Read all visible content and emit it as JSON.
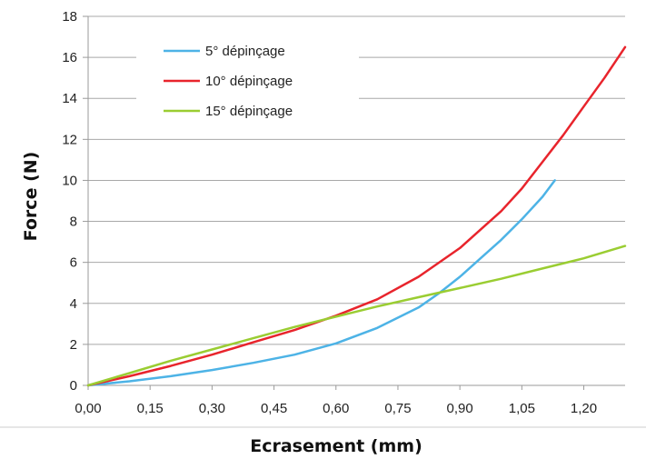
{
  "chart_data": {
    "type": "line",
    "title": "",
    "xlabel": "Ecrasement (mm)",
    "ylabel": "Force (N)",
    "xlim": [
      0,
      1.3
    ],
    "ylim": [
      0,
      18
    ],
    "x_ticks": [
      0,
      0.15,
      0.3,
      0.45,
      0.6,
      0.75,
      0.9,
      1.05,
      1.2
    ],
    "x_tick_labels": [
      "0,00",
      "0,15",
      "0,30",
      "0,45",
      "0,60",
      "0,75",
      "0,90",
      "1,05",
      "1,20"
    ],
    "y_ticks": [
      0,
      2,
      4,
      6,
      8,
      10,
      12,
      14,
      16,
      18
    ],
    "y_tick_labels": [
      "0",
      "2",
      "4",
      "6",
      "8",
      "10",
      "12",
      "14",
      "16",
      "18"
    ],
    "grid": "horizontal",
    "legend_position": "top-left",
    "series": [
      {
        "name": "5° dépinçage",
        "color": "#4db3e6",
        "x": [
          0,
          0.1,
          0.2,
          0.3,
          0.4,
          0.5,
          0.6,
          0.7,
          0.8,
          0.85,
          0.9,
          0.95,
          1.0,
          1.05,
          1.1,
          1.13
        ],
        "y": [
          0,
          0.2,
          0.45,
          0.75,
          1.1,
          1.5,
          2.05,
          2.8,
          3.8,
          4.5,
          5.3,
          6.2,
          7.1,
          8.1,
          9.2,
          10.0
        ]
      },
      {
        "name": "10° dépinçage",
        "color": "#e8242c",
        "x": [
          0,
          0.1,
          0.2,
          0.3,
          0.4,
          0.5,
          0.6,
          0.7,
          0.8,
          0.9,
          1.0,
          1.05,
          1.1,
          1.15,
          1.2,
          1.25,
          1.3
        ],
        "y": [
          0,
          0.45,
          0.95,
          1.5,
          2.1,
          2.7,
          3.4,
          4.2,
          5.3,
          6.7,
          8.5,
          9.6,
          10.9,
          12.2,
          13.6,
          15.0,
          16.5
        ]
      },
      {
        "name": "15° dépinçage",
        "color": "#9acd32",
        "x": [
          0,
          0.1,
          0.2,
          0.3,
          0.4,
          0.5,
          0.6,
          0.7,
          0.8,
          0.9,
          1.0,
          1.1,
          1.2,
          1.3
        ],
        "y": [
          0,
          0.6,
          1.2,
          1.75,
          2.3,
          2.85,
          3.35,
          3.85,
          4.3,
          4.75,
          5.2,
          5.7,
          6.2,
          6.8
        ]
      }
    ]
  }
}
